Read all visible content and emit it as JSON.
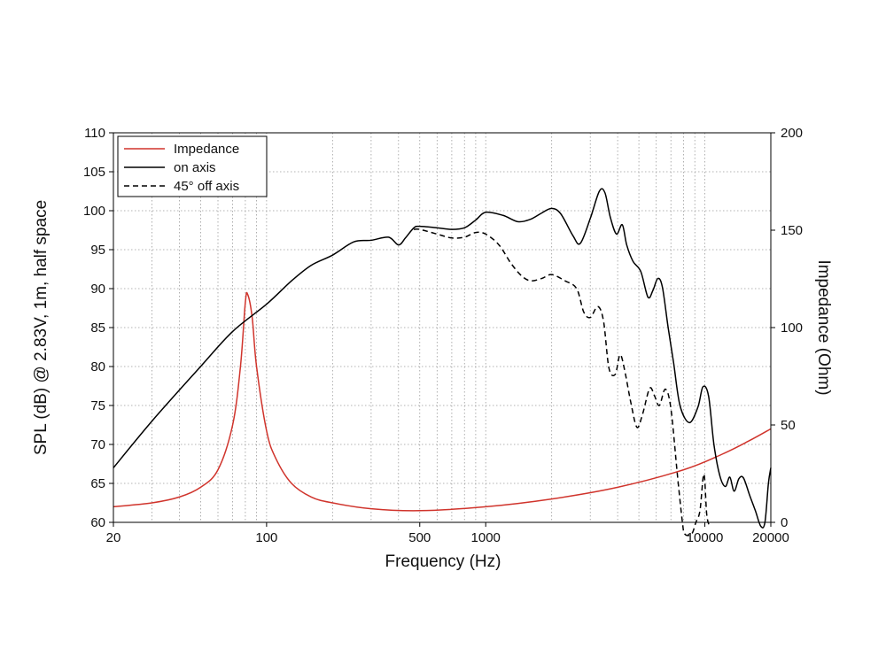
{
  "chart_data": {
    "type": "line",
    "xlabel": "Frequency (Hz)",
    "ylabel": "SPL (dB) @ 2.83V, 1m, half space",
    "y2label": "Impedance (Ohm)",
    "x_scale": "log",
    "xlim": [
      20,
      20000
    ],
    "ylim": [
      60,
      110
    ],
    "y2lim": [
      0,
      200
    ],
    "x_ticks": [
      20,
      100,
      500,
      1000,
      10000,
      20000
    ],
    "x_tick_labels": [
      "20",
      "100",
      "500",
      "1000",
      "10000",
      "20000"
    ],
    "y_ticks": [
      60,
      65,
      70,
      75,
      80,
      85,
      90,
      95,
      100,
      105,
      110
    ],
    "y_tick_labels": [
      "60",
      "65",
      "70",
      "75",
      "80",
      "85",
      "90",
      "95",
      "100",
      "105",
      "110"
    ],
    "y2_ticks": [
      0,
      50,
      100,
      150,
      200
    ],
    "y2_tick_labels": [
      "0",
      "50",
      "100",
      "150",
      "200"
    ],
    "grid": true,
    "legend_position": "top-left",
    "series": [
      {
        "name": "Impedance",
        "axis": "right",
        "color": "#d0342c",
        "style": "solid",
        "points": [
          [
            20,
            8
          ],
          [
            30,
            10
          ],
          [
            40,
            13
          ],
          [
            50,
            18
          ],
          [
            60,
            27
          ],
          [
            70,
            50
          ],
          [
            76,
            80
          ],
          [
            80,
            113
          ],
          [
            82,
            117
          ],
          [
            86,
            105
          ],
          [
            90,
            80
          ],
          [
            100,
            47
          ],
          [
            110,
            33
          ],
          [
            130,
            20
          ],
          [
            160,
            13
          ],
          [
            200,
            10
          ],
          [
            300,
            7
          ],
          [
            500,
            6
          ],
          [
            1000,
            8
          ],
          [
            2000,
            12
          ],
          [
            4000,
            18
          ],
          [
            8000,
            27
          ],
          [
            12000,
            35
          ],
          [
            16000,
            42
          ],
          [
            20000,
            48
          ]
        ]
      },
      {
        "name": "on axis",
        "axis": "left",
        "color": "#000000",
        "style": "solid",
        "points": [
          [
            20,
            67
          ],
          [
            30,
            73
          ],
          [
            50,
            80
          ],
          [
            70,
            84.5
          ],
          [
            100,
            88
          ],
          [
            130,
            91
          ],
          [
            160,
            93
          ],
          [
            200,
            94.3
          ],
          [
            250,
            96
          ],
          [
            300,
            96.2
          ],
          [
            360,
            96.6
          ],
          [
            400,
            95.6
          ],
          [
            430,
            96.5
          ],
          [
            470,
            97.8
          ],
          [
            500,
            98
          ],
          [
            600,
            97.8
          ],
          [
            700,
            97.6
          ],
          [
            800,
            97.8
          ],
          [
            900,
            98.8
          ],
          [
            1000,
            99.8
          ],
          [
            1200,
            99.4
          ],
          [
            1400,
            98.6
          ],
          [
            1600,
            98.9
          ],
          [
            1800,
            99.7
          ],
          [
            2000,
            100.3
          ],
          [
            2200,
            99.6
          ],
          [
            2500,
            96.8
          ],
          [
            2700,
            95.8
          ],
          [
            3000,
            99
          ],
          [
            3300,
            102.5
          ],
          [
            3500,
            102.3
          ],
          [
            3700,
            99.2
          ],
          [
            3950,
            97
          ],
          [
            4200,
            98.2
          ],
          [
            4400,
            95.6
          ],
          [
            4700,
            93.5
          ],
          [
            5100,
            92.2
          ],
          [
            5500,
            88.9
          ],
          [
            5800,
            89.8
          ],
          [
            6100,
            91.3
          ],
          [
            6400,
            90.2
          ],
          [
            6800,
            85
          ],
          [
            7200,
            80.5
          ],
          [
            7700,
            75
          ],
          [
            8500,
            72.8
          ],
          [
            9300,
            74.8
          ],
          [
            9800,
            77.4
          ],
          [
            10400,
            76.2
          ],
          [
            11000,
            70
          ],
          [
            11700,
            66
          ],
          [
            12400,
            64.6
          ],
          [
            13000,
            65.8
          ],
          [
            13600,
            64
          ],
          [
            14300,
            65.6
          ],
          [
            15000,
            65.7
          ],
          [
            16000,
            63.5
          ],
          [
            17000,
            61.5
          ],
          [
            18000,
            59.5
          ],
          [
            18800,
            60
          ],
          [
            19500,
            65
          ],
          [
            20000,
            67
          ]
        ]
      },
      {
        "name": "45° off axis",
        "axis": "left",
        "color": "#000000",
        "style": "dashed",
        "points": [
          [
            470,
            97.6
          ],
          [
            500,
            97.6
          ],
          [
            600,
            97
          ],
          [
            700,
            96.5
          ],
          [
            800,
            96.6
          ],
          [
            900,
            97.2
          ],
          [
            1000,
            97
          ],
          [
            1150,
            95.6
          ],
          [
            1300,
            93.3
          ],
          [
            1450,
            91.7
          ],
          [
            1600,
            91
          ],
          [
            1800,
            91.3
          ],
          [
            2000,
            91.8
          ],
          [
            2300,
            91
          ],
          [
            2600,
            90
          ],
          [
            2800,
            87
          ],
          [
            3000,
            86.3
          ],
          [
            3250,
            87.7
          ],
          [
            3450,
            85.8
          ],
          [
            3650,
            79.8
          ],
          [
            3900,
            79
          ],
          [
            4100,
            81.5
          ],
          [
            4300,
            79.6
          ],
          [
            4600,
            75.3
          ],
          [
            4900,
            72.2
          ],
          [
            5200,
            73.9
          ],
          [
            5600,
            77.2
          ],
          [
            5900,
            76.2
          ],
          [
            6200,
            75
          ],
          [
            6600,
            77.1
          ],
          [
            7000,
            74.6
          ],
          [
            7500,
            66
          ],
          [
            7900,
            60
          ],
          [
            8100,
            58.5
          ],
          [
            8700,
            58.5
          ],
          [
            9100,
            60
          ],
          [
            9500,
            61.5
          ],
          [
            9900,
            66.2
          ],
          [
            10200,
            61
          ],
          [
            10500,
            59.5
          ]
        ]
      }
    ]
  }
}
